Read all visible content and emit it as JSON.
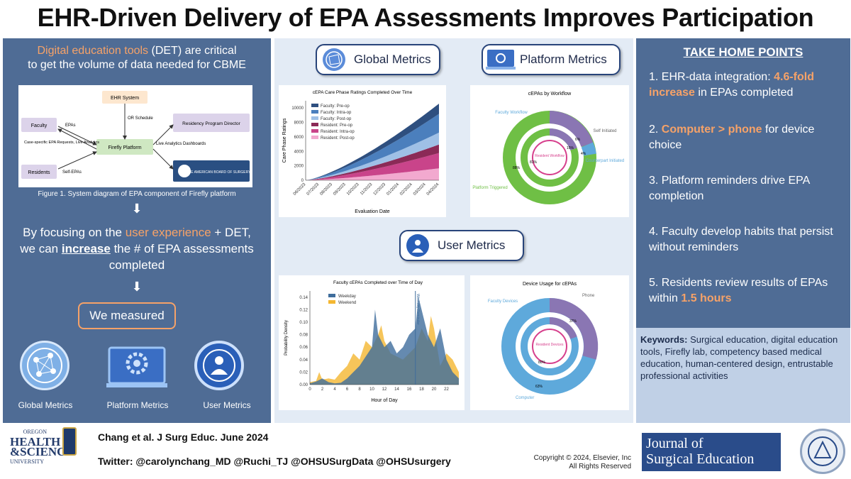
{
  "title": "EHR-Driven Delivery of EPA Assessments Improves Participation",
  "left": {
    "intro_a": "Digital education tools",
    "intro_b": " (DET) are critical",
    "intro_c": "to get the volume of data needed for CBME",
    "diagram": {
      "ehr": "EHR System",
      "faculty": "Faculty",
      "residents": "Residents",
      "firefly": "Firefly Platform",
      "director": "Residency Program Director",
      "board": "THE AMERICAN BOARD OF SURGERY",
      "epas": "EPAs",
      "or": "OR Schedule",
      "case": "Case-specific EPA Requests, Live Analytics",
      "selfepas": "Self-EPAs",
      "live": "Live Analytics Dashboards"
    },
    "caption": "Figure 1. System diagram of EPA component of Firefly platform",
    "arrow": "⬇",
    "focus_a": "By focusing on the ",
    "focus_b": "user experience",
    "focus_c": " + DET,",
    "focus_d": "we can ",
    "focus_e": "increase",
    "focus_f": " the # of EPA assessments",
    "focus_g": "completed",
    "measured": "We measured",
    "icons": [
      "Global Metrics",
      "Platform Metrics",
      "User Metrics"
    ]
  },
  "mid": {
    "global": "Global Metrics",
    "platform": "Platform Metrics",
    "user": "User Metrics",
    "c1": {
      "title": "cEPA Care Phase Ratings Completed Over Time",
      "ylabel": "Care Phase Ratings",
      "xlabel": "Evaluation Date",
      "yticks": [
        "0",
        "2000",
        "4000",
        "6000",
        "8000",
        "10000"
      ],
      "xticks": [
        "06/2023",
        "07/2023",
        "08/2023",
        "09/2023",
        "10/2023",
        "11/2023",
        "12/2023",
        "01/2024",
        "02/2024",
        "03/2024",
        "04/2024"
      ],
      "legend": [
        "Faculty: Pre-op",
        "Faculty: Intra-op",
        "Faculty: Post-op",
        "Resident: Pre-op",
        "Resident: Intra-op",
        "Resident: Post-op"
      ]
    },
    "c2": {
      "title": "cEPAs by Workflow",
      "faculty": "Faculty Workflow",
      "resident": "Resident Workflow",
      "self": "Self Initiated",
      "counter": "Counterpart Initiated",
      "platform": "Platform Triggered",
      "p1": "88%",
      "p2": "81%",
      "p3": "15%",
      "p4": "6%",
      "p5": "4%"
    },
    "c3": {
      "title": "Faculty cEPAs Completed over Time of Day",
      "ylabel": "Probability Density",
      "xlabel": "Hour of Day",
      "legend": [
        "Weekday",
        "Weekend"
      ],
      "reminder": "Weekday Reminder",
      "yticks": [
        "0.00",
        "0.02",
        "0.04",
        "0.06",
        "0.08",
        "0.10",
        "0.12",
        "0.14"
      ],
      "xticks": [
        "0",
        "2",
        "4",
        "6",
        "8",
        "10",
        "12",
        "14",
        "16",
        "18",
        "20",
        "22"
      ]
    },
    "c4": {
      "title": "Device Usage for cEPAs",
      "faculty": "Faculty Devices",
      "resident": "Resident Devices",
      "phone": "Phone",
      "computer": "Computer",
      "p1": "37%",
      "p2": "63%",
      "p3": "80%"
    }
  },
  "right": {
    "heading": "TAKE HOME POINTS",
    "p1a": "1. EHR-data integration: ",
    "p1b": "4.6-fold increase",
    "p1c": " in EPAs completed",
    "p2a": "2. ",
    "p2b": "Computer > phone",
    "p2c": " for device choice",
    "p3": "3. Platform reminders drive EPA completion",
    "p4": "4. Faculty develop habits that persist without reminders",
    "p5a": "5. Residents review results of EPAs within ",
    "p5b": "1.5 hours",
    "kw_label": "Keywords:",
    "kw": " Surgical education, digital education tools, Firefly lab, competency based medical education, human-centered design, entrustable professional activities"
  },
  "footer": {
    "ohsu1": "OREGON",
    "ohsu2": "HEALTH",
    "ohsu3": "&SCIENCE",
    "ohsu4": "UNIVERSITY",
    "cite": "Chang et al. J Surg Educ. June 2024",
    "twitter": "Twitter: @carolynchang_MD @Ruchi_TJ @OHSUSurgData @OHSUsurgery",
    "copy1": "Copyright © 2024, Elsevier, Inc",
    "copy2": "All Rights Reserved",
    "journal1": "Journal of",
    "journal2": "Surgical Education"
  },
  "colors": {
    "navy": "#4f6c95",
    "orange": "#f6a268",
    "light": "#e3ebf5",
    "weekday": "#3f6d9c",
    "weekend": "#f4b731",
    "green": "#6fbf45",
    "purple": "#8a76b3",
    "cyan": "#5ea9db"
  }
}
